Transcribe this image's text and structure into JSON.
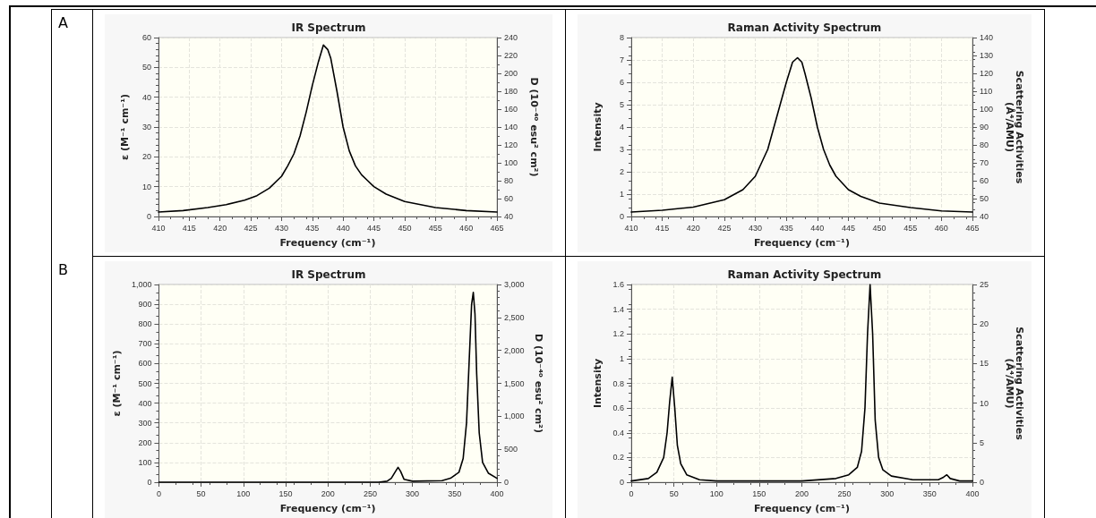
{
  "chart_data": [
    {
      "type": "line",
      "title": "IR Spectrum",
      "xlabel": "Frequency (cm⁻¹)",
      "ylabel": "ε (M⁻¹ cm⁻¹)",
      "y2label": "D (10⁻⁴⁰ esu² cm²)",
      "annotations": [
        "A"
      ],
      "x": [
        410,
        414,
        418,
        421,
        424,
        426,
        428,
        430,
        431,
        432,
        433,
        434,
        435,
        436,
        436.8,
        437.5,
        438,
        439,
        440,
        441,
        442,
        443,
        444,
        445,
        447,
        450,
        455,
        460,
        465
      ],
      "values": [
        1.5,
        2,
        3,
        4,
        5.5,
        7,
        9.5,
        13.5,
        17,
        21,
        27,
        35,
        44,
        52,
        57.5,
        56,
        53,
        42,
        30,
        22,
        17,
        14,
        12,
        10,
        7.5,
        5,
        3,
        2,
        1.5
      ],
      "color": "#000000",
      "xlim": [
        410,
        465
      ],
      "xticks": [
        410,
        415,
        420,
        425,
        430,
        435,
        440,
        445,
        450,
        455,
        460,
        465
      ],
      "ylim": [
        0,
        60
      ],
      "yticks": [
        0,
        10,
        20,
        30,
        40,
        50,
        60
      ],
      "y2lim": [
        40,
        240
      ],
      "y2ticks": [
        40,
        60,
        80,
        100,
        120,
        140,
        160,
        180,
        200,
        220,
        240
      ],
      "grid": true,
      "marker": "none",
      "line_style": "solid"
    },
    {
      "type": "line",
      "title": "Raman Activity Spectrum",
      "xlabel": "Frequency (cm⁻¹)",
      "ylabel": "Intensity",
      "y2label": "Scattering Activities\n(Å⁴/AMU)",
      "x": [
        410,
        415,
        420,
        425,
        428,
        430,
        432,
        434,
        435,
        436,
        436.8,
        437.5,
        438,
        439,
        440,
        441,
        442,
        443,
        445,
        447,
        450,
        455,
        460,
        465
      ],
      "values": [
        0.2,
        0.28,
        0.42,
        0.75,
        1.2,
        1.8,
        3,
        5,
        6,
        6.9,
        7.1,
        6.9,
        6.4,
        5.3,
        4,
        3,
        2.3,
        1.8,
        1.2,
        0.9,
        0.6,
        0.4,
        0.25,
        0.2
      ],
      "color": "#000000",
      "xlim": [
        410,
        465
      ],
      "xticks": [
        410,
        415,
        420,
        425,
        430,
        435,
        440,
        445,
        450,
        455,
        460,
        465
      ],
      "ylim": [
        0,
        8
      ],
      "yticks": [
        0,
        1,
        2,
        3,
        4,
        5,
        6,
        7,
        8
      ],
      "y2lim": [
        40,
        140
      ],
      "y2ticks": [
        40,
        50,
        60,
        70,
        80,
        90,
        100,
        110,
        120,
        130,
        140
      ],
      "grid": true,
      "marker": "none",
      "line_style": "solid"
    },
    {
      "type": "line",
      "title": "IR Spectrum",
      "xlabel": "Frequency (cm⁻¹)",
      "ylabel": "ε (M⁻¹ cm⁻¹)",
      "y2label": "D (10⁻⁴⁰ esu² cm²)",
      "annotations": [
        "B"
      ],
      "x": [
        0,
        260,
        270,
        275,
        280,
        283,
        286,
        290,
        300,
        335,
        345,
        355,
        360,
        364,
        367,
        370,
        372,
        374,
        376,
        379,
        383,
        390,
        400
      ],
      "values": [
        0,
        0,
        5,
        20,
        55,
        75,
        55,
        15,
        5,
        8,
        20,
        50,
        120,
        300,
        600,
        900,
        960,
        850,
        550,
        250,
        100,
        45,
        20
      ],
      "color": "#000000",
      "xlim": [
        0,
        400
      ],
      "xticks": [
        0,
        50,
        100,
        150,
        200,
        250,
        300,
        350,
        400
      ],
      "ylim": [
        0,
        1000
      ],
      "yticks": [
        0,
        100,
        200,
        300,
        400,
        500,
        600,
        700,
        800,
        900,
        {
          "value": 1000,
          "label": "1,000"
        }
      ],
      "y2lim": [
        0,
        3000
      ],
      "y2ticks": [
        0,
        500,
        {
          "value": 1000,
          "label": "1,000"
        },
        {
          "value": 1500,
          "label": "1,500"
        },
        {
          "value": 2000,
          "label": "2,000"
        },
        {
          "value": 2500,
          "label": "2,500"
        },
        {
          "value": 3000,
          "label": "3,000"
        }
      ],
      "grid": true,
      "marker": "none",
      "line_style": "solid"
    },
    {
      "type": "line",
      "title": "Raman Activity Spectrum",
      "xlabel": "Frequency (cm⁻¹)",
      "ylabel": "Intensity",
      "y2label": "Scattering Activities\n(Å⁴/AMU)",
      "x": [
        0,
        20,
        30,
        38,
        42,
        45,
        48,
        51,
        54,
        58,
        65,
        80,
        100,
        200,
        240,
        255,
        265,
        270,
        274,
        277,
        280,
        283,
        286,
        290,
        295,
        305,
        330,
        360,
        366,
        370,
        374,
        385,
        400
      ],
      "values": [
        0.01,
        0.03,
        0.08,
        0.2,
        0.4,
        0.65,
        0.85,
        0.6,
        0.3,
        0.15,
        0.06,
        0.02,
        0.01,
        0.01,
        0.03,
        0.06,
        0.12,
        0.25,
        0.6,
        1.2,
        1.6,
        1.2,
        0.5,
        0.2,
        0.1,
        0.05,
        0.02,
        0.02,
        0.04,
        0.06,
        0.03,
        0.01,
        0.01
      ],
      "color": "#000000",
      "xlim": [
        0,
        400
      ],
      "xticks": [
        0,
        50,
        100,
        150,
        200,
        250,
        300,
        350,
        400
      ],
      "ylim": [
        0,
        1.6
      ],
      "yticks": [
        0,
        0.2,
        0.4,
        0.6,
        0.8,
        1,
        1.2,
        1.4,
        1.6
      ],
      "y2lim": [
        0,
        25
      ],
      "y2ticks": [
        0,
        5,
        10,
        15,
        20,
        25
      ],
      "grid": true,
      "marker": "none",
      "line_style": "solid"
    }
  ]
}
